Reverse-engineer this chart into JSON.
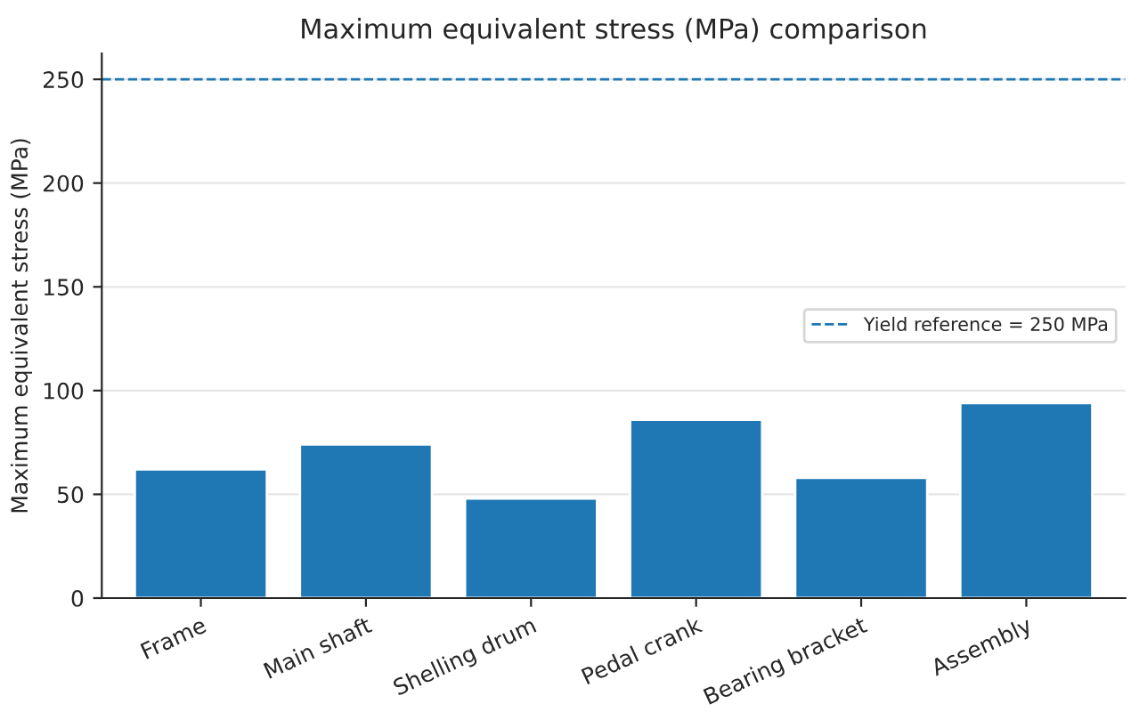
{
  "chart_data": {
    "type": "bar",
    "title": "Maximum equivalent stress (MPa) comparison",
    "ylabel": "Maximum equivalent stress (MPa)",
    "categories": [
      "Frame",
      "Main shaft",
      "Shelling drum",
      "Pedal crank",
      "Bearing bracket",
      "Assembly"
    ],
    "values": [
      62,
      74,
      48,
      86,
      58,
      94
    ],
    "color": "#1f77b4",
    "ylim": [
      0,
      262.5
    ],
    "yticks": [
      0,
      50,
      100,
      150,
      200,
      250
    ],
    "grid": "y",
    "legend": "right",
    "ref_lines": [
      {
        "axis": "y",
        "value": 250,
        "label": "Yield reference = 250 MPa",
        "color": "#1f77b4",
        "line_style": "dashed"
      }
    ]
  }
}
